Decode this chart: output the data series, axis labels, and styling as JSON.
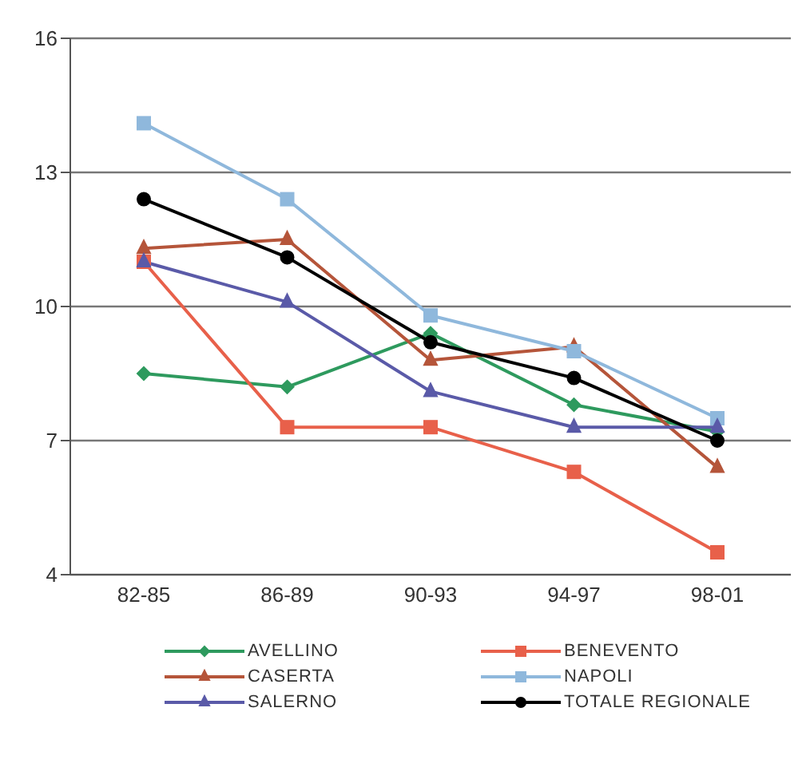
{
  "chart_data": {
    "type": "line",
    "categories": [
      "82-85",
      "86-89",
      "90-93",
      "94-97",
      "98-01"
    ],
    "series": [
      {
        "name": "AVELLINO",
        "color": "#2e9a5e",
        "marker": "diamond",
        "values": [
          8.5,
          8.2,
          9.4,
          7.8,
          7.2
        ]
      },
      {
        "name": "BENEVENTO",
        "color": "#e8604a",
        "marker": "square",
        "values": [
          11.0,
          7.3,
          7.3,
          6.3,
          4.5
        ]
      },
      {
        "name": "CASERTA",
        "color": "#b5553a",
        "marker": "triangle",
        "values": [
          11.3,
          11.5,
          8.8,
          9.1,
          6.4
        ]
      },
      {
        "name": "NAPOLI",
        "color": "#8fb8dc",
        "marker": "square",
        "values": [
          14.1,
          12.4,
          9.8,
          9.0,
          7.5
        ]
      },
      {
        "name": "SALERNO",
        "color": "#5a5aa8",
        "marker": "triangle",
        "values": [
          11.0,
          10.1,
          8.1,
          7.3,
          7.3
        ]
      },
      {
        "name": "TOTALE REGIONALE",
        "color": "#000000",
        "marker": "circle",
        "values": [
          12.4,
          11.1,
          9.2,
          8.4,
          7.0
        ]
      }
    ],
    "ylim": [
      4,
      16
    ],
    "yticks": [
      4,
      7,
      10,
      13,
      16
    ],
    "grid": "y",
    "legend": "bottom",
    "line_style": "solid"
  }
}
